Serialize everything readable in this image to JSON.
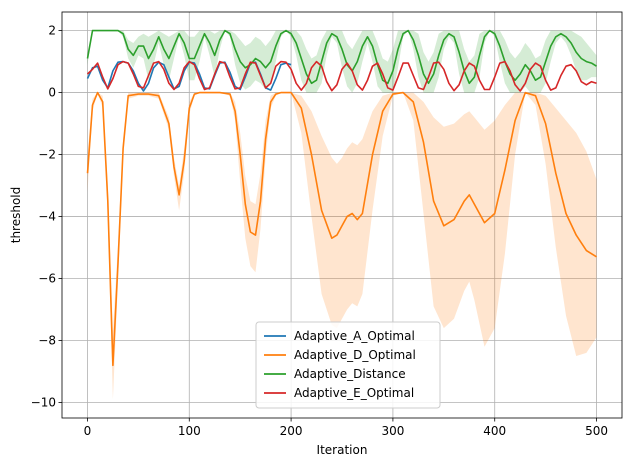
{
  "chart_data": {
    "type": "line",
    "title": "",
    "xlabel": "Iteration",
    "ylabel": "threshold",
    "xlim": [
      -25,
      525
    ],
    "ylim": [
      -10.5,
      2.6
    ],
    "xticks": [
      0,
      100,
      200,
      300,
      400,
      500
    ],
    "yticks": [
      -10,
      -8,
      -6,
      -4,
      -2,
      0,
      2
    ],
    "grid": true,
    "legend_position": "lower-center",
    "series": [
      {
        "name": "Adaptive_A_Optimal",
        "color": "#1f77b4",
        "x": [
          0,
          5,
          10,
          15,
          20,
          25,
          30,
          35,
          40,
          45,
          50,
          55,
          60,
          65,
          70,
          75,
          80,
          85,
          90,
          95,
          100,
          105,
          110,
          115,
          120,
          125,
          130,
          135,
          140,
          145,
          150,
          155,
          160,
          165,
          170,
          175,
          180,
          185,
          190,
          195,
          200
        ],
        "y": [
          0.45,
          0.8,
          0.85,
          0.4,
          0.15,
          0.7,
          0.98,
          1.0,
          0.95,
          0.7,
          0.3,
          0.05,
          0.3,
          0.8,
          0.98,
          0.9,
          0.5,
          0.12,
          0.2,
          0.7,
          0.98,
          0.95,
          0.6,
          0.15,
          0.12,
          0.55,
          0.95,
          0.98,
          0.65,
          0.2,
          0.1,
          0.5,
          0.95,
          0.98,
          0.6,
          0.15,
          0.08,
          0.45,
          0.9,
          0.95,
          0.9
        ],
        "band_upper": [],
        "band_lower": []
      },
      {
        "name": "Adaptive_D_Optimal",
        "color": "#ff7f0e",
        "x": [
          0,
          5,
          10,
          15,
          20,
          25,
          30,
          35,
          40,
          50,
          60,
          70,
          80,
          85,
          90,
          95,
          100,
          105,
          110,
          115,
          120,
          130,
          140,
          145,
          150,
          155,
          160,
          165,
          170,
          175,
          180,
          185,
          190,
          200,
          210,
          220,
          230,
          240,
          245,
          250,
          255,
          260,
          265,
          270,
          280,
          290,
          300,
          310,
          320,
          330,
          340,
          350,
          360,
          370,
          375,
          380,
          390,
          400,
          410,
          420,
          430,
          440,
          450,
          460,
          470,
          480,
          490,
          500
        ],
        "y": [
          -2.6,
          -0.4,
          0.0,
          -0.3,
          -3.5,
          -8.8,
          -5.5,
          -1.8,
          -0.1,
          -0.05,
          -0.05,
          -0.1,
          -1.0,
          -2.4,
          -3.3,
          -2.2,
          -0.5,
          -0.05,
          0.0,
          0.0,
          0.0,
          0.0,
          -0.05,
          -0.6,
          -2.0,
          -3.6,
          -4.5,
          -4.6,
          -3.5,
          -1.5,
          -0.3,
          -0.05,
          0.0,
          0.0,
          -0.5,
          -2.0,
          -3.8,
          -4.7,
          -4.6,
          -4.3,
          -4.0,
          -3.9,
          -4.1,
          -3.9,
          -2.0,
          -0.6,
          -0.05,
          0.0,
          -0.3,
          -1.6,
          -3.5,
          -4.3,
          -4.1,
          -3.5,
          -3.3,
          -3.6,
          -4.2,
          -3.9,
          -2.5,
          -0.9,
          0.0,
          -0.1,
          -1.0,
          -2.6,
          -3.9,
          -4.6,
          -5.1,
          -5.3
        ],
        "band_upper": [
          -2.0,
          -0.2,
          0.0,
          -0.1,
          -3.0,
          -7.7,
          -4.9,
          -1.5,
          0.0,
          0.0,
          0.0,
          0.0,
          -0.8,
          -2.1,
          -3.0,
          -1.8,
          -0.3,
          0.0,
          0.0,
          0.0,
          0.0,
          0.0,
          0.0,
          -0.3,
          -1.3,
          -2.7,
          -3.5,
          -3.6,
          -2.6,
          -0.9,
          -0.1,
          0.0,
          0.0,
          0.0,
          -0.1,
          -0.6,
          -1.4,
          -2.1,
          -2.3,
          -2.1,
          -1.8,
          -1.6,
          -1.7,
          -1.5,
          -0.6,
          -0.1,
          0.0,
          0.0,
          0.0,
          -0.3,
          -0.8,
          -1.1,
          -1.0,
          -0.7,
          -0.6,
          -0.8,
          -1.2,
          -0.9,
          -0.4,
          0.0,
          0.0,
          0.0,
          -0.1,
          -0.5,
          -0.9,
          -1.3,
          -1.9,
          -2.8
        ],
        "band_lower": [
          -3.2,
          -0.6,
          0.0,
          -0.5,
          -4.0,
          -9.9,
          -6.1,
          -2.1,
          -0.2,
          -0.1,
          -0.1,
          -0.2,
          -1.2,
          -2.7,
          -3.8,
          -2.6,
          -0.7,
          -0.1,
          0.0,
          0.0,
          0.0,
          0.0,
          -0.1,
          -0.9,
          -2.9,
          -4.7,
          -5.6,
          -5.8,
          -4.4,
          -2.1,
          -0.5,
          -0.1,
          0.0,
          0.0,
          -1.3,
          -4.0,
          -6.5,
          -7.5,
          -7.6,
          -7.3,
          -7.0,
          -6.8,
          -6.9,
          -6.5,
          -3.8,
          -1.4,
          -0.1,
          0.0,
          -0.9,
          -3.9,
          -6.9,
          -7.6,
          -7.3,
          -6.4,
          -6.1,
          -6.7,
          -8.2,
          -7.6,
          -5.2,
          -2.0,
          0.0,
          -0.4,
          -2.3,
          -5.0,
          -7.2,
          -8.5,
          -8.4,
          -7.9
        ]
      },
      {
        "name": "Adaptive_Distance",
        "color": "#2ca02c",
        "x": [
          0,
          5,
          10,
          20,
          30,
          35,
          40,
          45,
          50,
          55,
          60,
          65,
          70,
          75,
          80,
          85,
          90,
          95,
          100,
          105,
          110,
          115,
          120,
          125,
          130,
          135,
          140,
          145,
          150,
          155,
          160,
          165,
          170,
          175,
          180,
          185,
          190,
          195,
          200,
          205,
          210,
          215,
          220,
          225,
          230,
          235,
          240,
          245,
          250,
          255,
          260,
          265,
          270,
          275,
          280,
          285,
          290,
          295,
          300,
          305,
          310,
          315,
          320,
          325,
          330,
          335,
          340,
          345,
          350,
          355,
          360,
          365,
          370,
          375,
          380,
          385,
          390,
          395,
          400,
          405,
          410,
          415,
          420,
          425,
          430,
          435,
          440,
          445,
          450,
          455,
          460,
          465,
          470,
          475,
          480,
          485,
          490,
          495,
          500
        ],
        "y": [
          1.1,
          2.0,
          2.0,
          2.0,
          2.0,
          1.9,
          1.4,
          1.2,
          1.5,
          1.5,
          1.1,
          1.4,
          1.8,
          1.4,
          1.1,
          1.5,
          1.9,
          1.6,
          1.1,
          1.1,
          1.5,
          1.9,
          1.6,
          1.2,
          1.7,
          2.0,
          1.9,
          1.4,
          1.0,
          0.8,
          0.9,
          1.1,
          1.0,
          0.8,
          1.0,
          1.5,
          1.9,
          2.0,
          1.9,
          1.6,
          1.1,
          0.6,
          0.3,
          0.4,
          1.0,
          1.6,
          1.9,
          1.8,
          1.4,
          0.9,
          0.7,
          1.0,
          1.5,
          1.8,
          1.5,
          0.9,
          0.4,
          0.3,
          0.7,
          1.4,
          1.9,
          2.0,
          1.7,
          1.2,
          0.6,
          0.3,
          0.6,
          1.2,
          1.7,
          1.9,
          1.8,
          1.3,
          0.7,
          0.3,
          0.5,
          1.2,
          1.8,
          2.0,
          1.9,
          1.5,
          1.0,
          0.6,
          0.4,
          0.6,
          0.9,
          0.7,
          0.4,
          0.5,
          1.0,
          1.5,
          1.8,
          1.9,
          1.8,
          1.6,
          1.3,
          1.1,
          1.0,
          0.95,
          0.85
        ],
        "band_upper": [
          1.3,
          2.0,
          2.0,
          2.0,
          2.0,
          2.0,
          1.7,
          1.6,
          1.8,
          1.9,
          1.8,
          1.9,
          2.0,
          1.9,
          1.8,
          1.9,
          2.0,
          2.0,
          1.8,
          1.8,
          2.0,
          2.0,
          2.0,
          1.9,
          2.0,
          2.0,
          2.0,
          1.9,
          1.7,
          1.5,
          1.6,
          1.8,
          1.7,
          1.5,
          1.7,
          2.0,
          2.0,
          2.0,
          2.0,
          2.0,
          1.8,
          1.4,
          1.1,
          1.2,
          1.7,
          2.0,
          2.0,
          2.0,
          2.0,
          1.6,
          1.4,
          1.7,
          2.0,
          2.0,
          2.0,
          1.6,
          1.1,
          1.0,
          1.4,
          2.0,
          2.0,
          2.0,
          2.0,
          1.9,
          1.3,
          1.0,
          1.3,
          1.9,
          2.0,
          2.0,
          2.0,
          2.0,
          1.4,
          1.0,
          1.2,
          1.9,
          2.0,
          2.0,
          2.0,
          2.0,
          1.7,
          1.3,
          1.1,
          1.3,
          1.6,
          1.4,
          1.1,
          1.2,
          1.7,
          2.0,
          2.0,
          2.0,
          2.0,
          2.0,
          1.9,
          1.8,
          1.6,
          1.4,
          1.2
        ],
        "band_lower": [
          0.9,
          2.0,
          2.0,
          2.0,
          2.0,
          1.8,
          1.1,
          0.8,
          1.2,
          1.1,
          0.4,
          0.9,
          1.6,
          0.9,
          0.4,
          1.1,
          1.8,
          1.2,
          0.4,
          0.4,
          1.0,
          1.8,
          1.2,
          0.5,
          1.4,
          2.0,
          1.8,
          0.9,
          0.3,
          0.1,
          0.2,
          0.4,
          0.3,
          0.1,
          0.3,
          1.0,
          1.8,
          2.0,
          1.8,
          1.2,
          0.4,
          0.0,
          0.0,
          0.0,
          0.3,
          1.2,
          1.8,
          1.6,
          0.8,
          0.2,
          0.0,
          0.3,
          1.0,
          1.6,
          1.0,
          0.2,
          0.0,
          0.0,
          0.0,
          0.8,
          1.8,
          2.0,
          1.4,
          0.5,
          0.0,
          0.0,
          0.0,
          0.5,
          1.4,
          1.8,
          1.6,
          0.6,
          0.0,
          0.0,
          0.0,
          0.5,
          1.6,
          2.0,
          1.8,
          1.0,
          0.3,
          0.0,
          0.0,
          0.0,
          0.2,
          0.0,
          0.0,
          0.0,
          0.3,
          1.0,
          1.6,
          1.8,
          1.6,
          1.2,
          0.7,
          0.4,
          0.4,
          0.5,
          0.5
        ]
      },
      {
        "name": "Adaptive_E_Optimal",
        "color": "#d62728",
        "x": [
          0,
          5,
          10,
          15,
          20,
          25,
          30,
          35,
          40,
          45,
          50,
          55,
          60,
          65,
          70,
          75,
          80,
          85,
          90,
          95,
          100,
          105,
          110,
          115,
          120,
          125,
          130,
          135,
          140,
          145,
          150,
          155,
          160,
          165,
          170,
          175,
          180,
          185,
          190,
          195,
          200,
          205,
          210,
          215,
          220,
          225,
          230,
          235,
          240,
          245,
          250,
          255,
          260,
          265,
          270,
          275,
          280,
          285,
          290,
          295,
          300,
          305,
          310,
          315,
          320,
          325,
          330,
          335,
          340,
          345,
          350,
          355,
          360,
          365,
          370,
          375,
          380,
          385,
          390,
          395,
          400,
          405,
          410,
          415,
          420,
          425,
          430,
          435,
          440,
          445,
          450,
          455,
          460,
          465,
          470,
          475,
          480,
          485,
          490,
          495,
          500
        ],
        "y": [
          0.6,
          0.75,
          0.95,
          0.5,
          0.12,
          0.45,
          0.9,
          1.0,
          0.95,
          0.6,
          0.2,
          0.15,
          0.55,
          0.95,
          1.0,
          0.75,
          0.3,
          0.1,
          0.3,
          0.8,
          1.0,
          0.9,
          0.45,
          0.1,
          0.15,
          0.6,
          1.0,
          0.95,
          0.5,
          0.12,
          0.15,
          0.6,
          0.98,
          0.95,
          0.55,
          0.15,
          0.3,
          0.85,
          1.0,
          0.98,
          0.75,
          0.3,
          0.08,
          0.3,
          0.8,
          1.0,
          0.85,
          0.35,
          0.06,
          0.25,
          0.75,
          0.95,
          0.7,
          0.25,
          0.08,
          0.4,
          0.85,
          0.95,
          0.6,
          0.15,
          0.08,
          0.5,
          0.95,
          0.95,
          0.55,
          0.15,
          0.1,
          0.5,
          0.95,
          0.98,
          0.75,
          0.3,
          0.06,
          0.25,
          0.7,
          0.95,
          0.85,
          0.4,
          0.1,
          0.1,
          0.5,
          0.95,
          1.0,
          0.7,
          0.25,
          0.05,
          0.3,
          0.75,
          0.95,
          0.85,
          0.4,
          0.08,
          0.15,
          0.55,
          0.85,
          0.9,
          0.7,
          0.35,
          0.25,
          0.35,
          0.3
        ],
        "band_upper": [],
        "band_lower": []
      }
    ]
  }
}
